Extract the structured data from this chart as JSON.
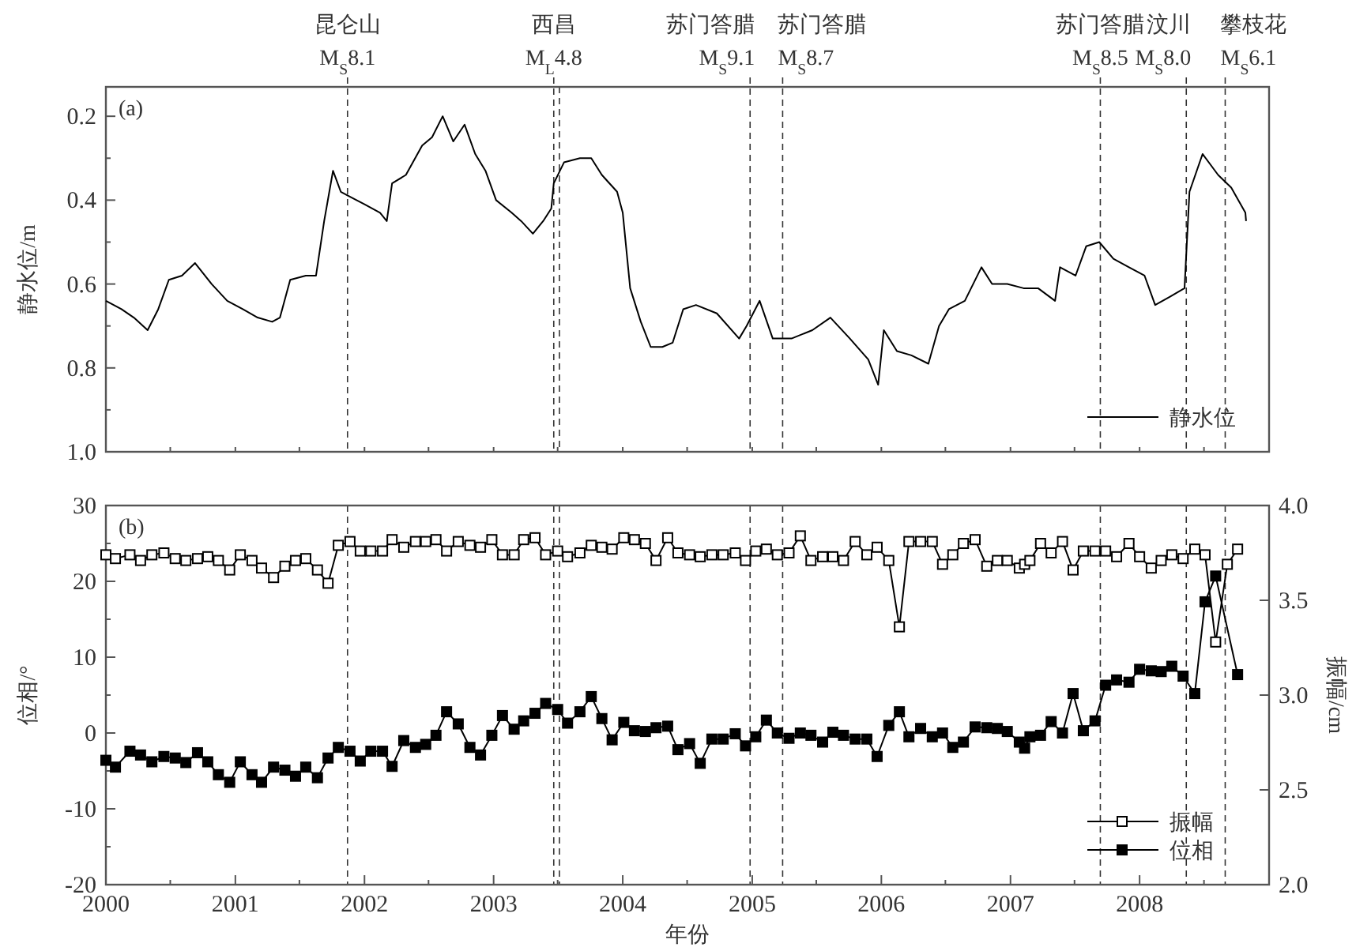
{
  "chart_data": [
    {
      "type": "line",
      "ylabel": "静水位/m",
      "annotations": [
        "(a)"
      ],
      "legend": "bottom right",
      "tick_labels": "y",
      "xlim": [
        "2000",
        "2009"
      ],
      "xticks": [
        {
          "value": "2000",
          "label": null
        },
        {
          "value": "2000-07",
          "label": null
        },
        {
          "value": "2001",
          "label": null
        },
        {
          "value": "2001-07",
          "label": null
        },
        {
          "value": "2002",
          "label": null
        },
        {
          "value": "2002-07",
          "label": null
        },
        {
          "value": "2003",
          "label": null
        },
        {
          "value": "2003-07",
          "label": null
        },
        {
          "value": "2004",
          "label": null
        },
        {
          "value": "2004-07",
          "label": null
        },
        {
          "value": "2005",
          "label": null
        },
        {
          "value": "2005-07",
          "label": null
        },
        {
          "value": "2006",
          "label": null
        },
        {
          "value": "2006-07",
          "label": null
        },
        {
          "value": "2007",
          "label": null
        },
        {
          "value": "2007-07",
          "label": null
        },
        {
          "value": "2008",
          "label": null
        },
        {
          "value": "2008-07",
          "label": null
        }
      ],
      "ylim": [
        1.0,
        0.13
      ],
      "yticks": [
        0.2,
        {
          "value": 0.3,
          "label": null
        },
        0.4,
        {
          "value": 0.5,
          "label": null
        },
        0.6,
        {
          "value": 0.7,
          "label": null
        },
        0.8,
        {
          "value": 0.9,
          "label": null
        },
        {
          "value": 1.0,
          "label": "1.0"
        }
      ],
      "ref_lines": [
        {
          "axis": "x",
          "value": "2001-11-14",
          "label": "昆仑山\nM$_{S}$8.1",
          "line_style": "dashed"
        },
        {
          "axis": "x",
          "value": "2003-06-20",
          "label": "西昌\nM$_{L}$4.8",
          "line_style": "dashed"
        },
        {
          "axis": "x",
          "value": "2003-07-06",
          "label": null,
          "line_style": "dashed"
        },
        {
          "axis": "x",
          "value": "2004-12-26",
          "label": "苏门答腊\nM$_{S}$9.1",
          "line_style": "dashed"
        },
        {
          "axis": "x",
          "value": "2005-03-28",
          "label": "苏门答腊\nM$_{S}$8.7",
          "line_style": "dashed"
        },
        {
          "axis": "x",
          "value": "2007-09-12",
          "label": "苏门答腊\nM$_{S}$8.5",
          "line_style": "dashed"
        },
        {
          "axis": "x",
          "value": "2008-05-12",
          "label": "汶川\nM$_{S}$8.0",
          "line_style": "dashed"
        },
        {
          "axis": "x",
          "value": "2008-08-30",
          "label": "攀枝花\nM$_{S}$6.1",
          "line_style": "dashed"
        }
      ],
      "series": [
        {
          "name": "静水位",
          "color": "#000000",
          "x": [
            "2000-01-01",
            "2000-02-14",
            "2000-03-20",
            "2000-04-28",
            "2000-05-28",
            "2000-06-27",
            "2000-08-03",
            "2000-09-09",
            "2000-10-26",
            "2000-12-09",
            "2001-01-22",
            "2001-03-05",
            "2001-04-15",
            "2001-05-07",
            "2001-06-05",
            "2001-07-19",
            "2001-08-17",
            "2001-09-09",
            "2001-10-04",
            "2001-10-26",
            "2001-11-17",
            "2002-01-01",
            "2002-02-14",
            "2002-03-05",
            "2002-03-20",
            "2002-04-28",
            "2002-06-13",
            "2002-07-11",
            "2002-08-10",
            "2002-09-09",
            "2002-10-11",
            "2002-11-10",
            "2002-12-09",
            "2003-01-08",
            "2003-02-21",
            "2003-03-20",
            "2003-04-22",
            "2003-05-21",
            "2003-06-13",
            "2003-06-20",
            "2003-07-19",
            "2003-09-02",
            "2003-10-04",
            "2003-11-03",
            "2003-12-16",
            "2004-01-01",
            "2004-01-22",
            "2004-02-21",
            "2004-03-20",
            "2004-04-22",
            "2004-05-21",
            "2004-06-20",
            "2004-07-26",
            "2004-09-23",
            "2004-11-25",
            "2004-12-16",
            "2005-01-22",
            "2005-02-28",
            "2005-04-22",
            "2005-06-20",
            "2005-08-10",
            "2005-10-04",
            "2005-11-25",
            "2005-12-23",
            "2006-01-08",
            "2006-02-14",
            "2006-03-27",
            "2006-05-14",
            "2006-06-13",
            "2006-07-11",
            "2006-08-25",
            "2006-10-11",
            "2006-11-10",
            "2006-12-23",
            "2007-02-07",
            "2007-03-20",
            "2007-05-07",
            "2007-05-21",
            "2007-07-04",
            "2007-08-03",
            "2007-09-09",
            "2007-10-19",
            "2007-12-02",
            "2008-01-15",
            "2008-02-14",
            "2008-03-27",
            "2008-05-07",
            "2008-05-21",
            "2008-06-27",
            "2008-08-10",
            "2008-09-16",
            "2008-10-26",
            "2008-10-28"
          ],
          "values": [
            0.64,
            0.66,
            0.68,
            0.71,
            0.66,
            0.59,
            0.58,
            0.55,
            0.6,
            0.64,
            0.66,
            0.68,
            0.69,
            0.68,
            0.59,
            0.58,
            0.58,
            0.45,
            0.33,
            0.38,
            0.39,
            0.41,
            0.43,
            0.45,
            0.36,
            0.34,
            0.27,
            0.25,
            0.2,
            0.26,
            0.22,
            0.29,
            0.33,
            0.4,
            0.43,
            0.45,
            0.48,
            0.45,
            0.42,
            0.36,
            0.31,
            0.3,
            0.3,
            0.34,
            0.38,
            0.43,
            0.61,
            0.69,
            0.75,
            0.75,
            0.74,
            0.66,
            0.65,
            0.67,
            0.73,
            0.7,
            0.64,
            0.73,
            0.73,
            0.71,
            0.68,
            0.73,
            0.78,
            0.84,
            0.71,
            0.76,
            0.77,
            0.79,
            0.7,
            0.66,
            0.64,
            0.56,
            0.6,
            0.6,
            0.61,
            0.61,
            0.64,
            0.56,
            0.58,
            0.51,
            0.5,
            0.54,
            0.56,
            0.58,
            0.65,
            0.63,
            0.61,
            0.38,
            0.29,
            0.34,
            0.37,
            0.43,
            0.45
          ]
        }
      ]
    },
    {
      "type": "line",
      "xlabel": "年份",
      "ylabel": "位相/°",
      "y2label": "振幅/cm",
      "annotations": [
        "(b)"
      ],
      "legend": "bottom right",
      "xlim": [
        "2000",
        "2009"
      ],
      "xticks": [
        {
          "value": "2000",
          "label": "2000"
        },
        {
          "value": "2000-07",
          "label": null
        },
        {
          "value": "2001",
          "label": "2001"
        },
        {
          "value": "2001-07",
          "label": null
        },
        {
          "value": "2002",
          "label": "2002"
        },
        {
          "value": "2002-07",
          "label": null
        },
        {
          "value": "2003",
          "label": "2003"
        },
        {
          "value": "2003-07",
          "label": null
        },
        {
          "value": "2004",
          "label": "2004"
        },
        {
          "value": "2004-07",
          "label": null
        },
        {
          "value": "2005",
          "label": "2005"
        },
        {
          "value": "2005-07",
          "label": null
        },
        {
          "value": "2006",
          "label": "2006"
        },
        {
          "value": "2006-07",
          "label": null
        },
        {
          "value": "2007",
          "label": "2007"
        },
        {
          "value": "2007-07",
          "label": null
        },
        {
          "value": "2008",
          "label": "2008"
        },
        {
          "value": "2008-07",
          "label": null
        }
      ],
      "ylim": [
        -20,
        30
      ],
      "yticks": [
        -20,
        {
          "value": -15,
          "label": null
        },
        -10,
        {
          "value": -5,
          "label": null
        },
        0,
        {
          "value": 5,
          "label": null
        },
        10,
        {
          "value": 15,
          "label": null
        },
        20,
        {
          "value": 25,
          "label": null
        },
        30
      ],
      "y2lim": [
        2.0,
        4.0
      ],
      "y2ticks": [
        {
          "value": 2.0,
          "label": "2.0"
        },
        2.5,
        {
          "value": 3.0,
          "label": "3.0"
        },
        3.5,
        {
          "value": 4.0,
          "label": "4.0"
        }
      ],
      "ref_lines": [
        {
          "axis": "x",
          "value": "2001-11-14",
          "label": null,
          "line_style": "dashed"
        },
        {
          "axis": "x",
          "value": "2003-06-20",
          "label": null,
          "line_style": "dashed"
        },
        {
          "axis": "x",
          "value": "2003-07-06",
          "label": null,
          "line_style": "dashed"
        },
        {
          "axis": "x",
          "value": "2004-12-26",
          "label": null,
          "line_style": "dashed"
        },
        {
          "axis": "x",
          "value": "2005-03-28",
          "label": null,
          "line_style": "dashed"
        },
        {
          "axis": "x",
          "value": "2007-09-12",
          "label": null,
          "line_style": "dashed"
        },
        {
          "axis": "x",
          "value": "2008-05-12",
          "label": null,
          "line_style": "dashed"
        },
        {
          "axis": "x",
          "value": "2008-08-30",
          "label": null,
          "line_style": "dashed"
        }
      ],
      "series": [
        {
          "name": "振幅",
          "color": "#000000",
          "axis": "y2",
          "marker": "square",
          "x": [
            "2000-01-01",
            "2000-01-28",
            "2000-03-09",
            "2000-04-08",
            "2000-05-10",
            "2000-06-13",
            "2000-07-15",
            "2000-08-14",
            "2000-09-16",
            "2000-10-15",
            "2000-11-14",
            "2000-12-16",
            "2001-01-15",
            "2001-02-17",
            "2001-03-16",
            "2001-04-19",
            "2001-05-21",
            "2001-06-20",
            "2001-07-19",
            "2001-08-21",
            "2001-09-20",
            "2001-10-19",
            "2001-11-21",
            "2001-12-20",
            "2002-01-19",
            "2002-02-21",
            "2002-03-20",
            "2002-04-22",
            "2002-05-25",
            "2002-06-23",
            "2002-07-22",
            "2002-08-21",
            "2002-09-23",
            "2002-10-26",
            "2002-11-25",
            "2002-12-27",
            "2003-01-26",
            "2003-02-28",
            "2003-03-27",
            "2003-04-28",
            "2003-05-28",
            "2003-07-01",
            "2003-07-29",
            "2003-09-02",
            "2003-10-04",
            "2003-11-03",
            "2003-12-02",
            "2004-01-04",
            "2004-02-03",
            "2004-03-05",
            "2004-04-04",
            "2004-05-07",
            "2004-06-05",
            "2004-07-08",
            "2004-08-07",
            "2004-09-09",
            "2004-10-11",
            "2004-11-14",
            "2004-12-13",
            "2005-01-11",
            "2005-02-10",
            "2005-03-13",
            "2005-04-15",
            "2005-05-17",
            "2005-06-16",
            "2005-07-19",
            "2005-08-17",
            "2005-09-16",
            "2005-10-19",
            "2005-11-21",
            "2005-12-20",
            "2006-01-22",
            "2006-02-21",
            "2006-03-20",
            "2006-04-22",
            "2006-05-25",
            "2006-06-23",
            "2006-07-22",
            "2006-08-21",
            "2006-09-23",
            "2006-10-26",
            "2006-11-25",
            "2006-12-23",
            "2007-01-26",
            "2007-02-10",
            "2007-02-25",
            "2007-03-27",
            "2007-04-26",
            "2007-05-28",
            "2007-06-27",
            "2007-07-26",
            "2007-08-28",
            "2007-09-27",
            "2007-10-28",
            "2007-12-02",
            "2008-01-01",
            "2008-02-03",
            "2008-03-02",
            "2008-04-01",
            "2008-05-03",
            "2008-06-05",
            "2008-07-04",
            "2008-08-03",
            "2008-09-05",
            "2008-10-04"
          ],
          "values": [
            3.74,
            3.72,
            3.74,
            3.71,
            3.74,
            3.75,
            3.72,
            3.71,
            3.72,
            3.73,
            3.71,
            3.66,
            3.74,
            3.71,
            3.67,
            3.62,
            3.68,
            3.71,
            3.72,
            3.66,
            3.59,
            3.79,
            3.81,
            3.76,
            3.76,
            3.76,
            3.82,
            3.78,
            3.81,
            3.81,
            3.82,
            3.76,
            3.81,
            3.79,
            3.78,
            3.82,
            3.74,
            3.74,
            3.82,
            3.83,
            3.74,
            3.76,
            3.73,
            3.75,
            3.79,
            3.78,
            3.77,
            3.83,
            3.82,
            3.8,
            3.71,
            3.83,
            3.75,
            3.74,
            3.73,
            3.74,
            3.74,
            3.75,
            3.71,
            3.76,
            3.77,
            3.74,
            3.75,
            3.84,
            3.71,
            3.73,
            3.73,
            3.71,
            3.81,
            3.74,
            3.78,
            3.71,
            3.36,
            3.81,
            3.81,
            3.81,
            3.69,
            3.74,
            3.8,
            3.82,
            3.68,
            3.71,
            3.71,
            3.67,
            3.69,
            3.71,
            3.8,
            3.75,
            3.81,
            3.66,
            3.76,
            3.76,
            3.76,
            3.73,
            3.8,
            3.73,
            3.67,
            3.71,
            3.74,
            3.72,
            3.77,
            3.74,
            3.28,
            3.69,
            3.77
          ]
        },
        {
          "name": "位相",
          "color": "#000000",
          "marker": "square",
          "x": [
            "2000-01-01",
            "2000-01-28",
            "2000-03-09",
            "2000-04-08",
            "2000-05-10",
            "2000-06-13",
            "2000-07-15",
            "2000-08-14",
            "2000-09-16",
            "2000-10-15",
            "2000-11-14",
            "2000-12-16",
            "2001-01-15",
            "2001-02-17",
            "2001-03-16",
            "2001-04-19",
            "2001-05-21",
            "2001-06-20",
            "2001-07-19",
            "2001-08-21",
            "2001-09-20",
            "2001-10-19",
            "2001-11-21",
            "2001-12-20",
            "2002-01-19",
            "2002-02-21",
            "2002-03-20",
            "2002-04-22",
            "2002-05-25",
            "2002-06-23",
            "2002-07-22",
            "2002-08-21",
            "2002-09-23",
            "2002-10-26",
            "2002-11-25",
            "2002-12-27",
            "2003-01-26",
            "2003-02-28",
            "2003-03-27",
            "2003-04-28",
            "2003-05-28",
            "2003-07-01",
            "2003-07-29",
            "2003-09-02",
            "2003-10-04",
            "2003-11-03",
            "2003-12-02",
            "2004-01-04",
            "2004-02-03",
            "2004-03-05",
            "2004-04-04",
            "2004-05-07",
            "2004-06-05",
            "2004-07-08",
            "2004-08-07",
            "2004-09-09",
            "2004-10-11",
            "2004-11-14",
            "2004-12-13",
            "2005-01-11",
            "2005-02-10",
            "2005-03-13",
            "2005-04-15",
            "2005-05-17",
            "2005-06-16",
            "2005-07-19",
            "2005-08-17",
            "2005-09-16",
            "2005-10-19",
            "2005-11-21",
            "2005-12-20",
            "2006-01-22",
            "2006-02-21",
            "2006-03-20",
            "2006-04-22",
            "2006-05-25",
            "2006-06-23",
            "2006-07-22",
            "2006-08-21",
            "2006-09-23",
            "2006-10-26",
            "2006-11-25",
            "2006-12-23",
            "2007-01-26",
            "2007-02-10",
            "2007-02-25",
            "2007-03-27",
            "2007-04-26",
            "2007-05-28",
            "2007-06-27",
            "2007-07-26",
            "2007-08-28",
            "2007-09-27",
            "2007-10-28",
            "2007-12-02",
            "2008-01-01",
            "2008-02-03",
            "2008-03-02",
            "2008-04-01",
            "2008-05-03",
            "2008-06-05",
            "2008-07-04",
            "2008-08-03",
            "2008-10-04"
          ],
          "values": [
            -3.6,
            -4.5,
            -2.4,
            -2.9,
            -3.8,
            -3.1,
            -3.3,
            -3.9,
            -2.6,
            -3.8,
            -5.5,
            -6.5,
            -3.8,
            -5.5,
            -6.5,
            -4.5,
            -4.9,
            -5.7,
            -4.5,
            -5.9,
            -3.3,
            -1.9,
            -2.4,
            -3.7,
            -2.4,
            -2.4,
            -4.4,
            -1.0,
            -1.9,
            -1.5,
            -0.3,
            2.8,
            1.2,
            -1.9,
            -2.9,
            -0.3,
            2.3,
            0.5,
            1.6,
            2.6,
            3.9,
            3.1,
            1.3,
            2.8,
            4.8,
            1.9,
            -0.9,
            1.4,
            0.3,
            0.2,
            0.7,
            0.9,
            -2.2,
            -1.4,
            -4.0,
            -0.8,
            -0.8,
            -0.1,
            -1.7,
            -0.5,
            1.7,
            0.0,
            -0.7,
            0.0,
            -0.3,
            -1.2,
            0.1,
            -0.3,
            -0.8,
            -0.8,
            -3.1,
            1.0,
            2.8,
            -0.5,
            0.6,
            -0.5,
            0.0,
            -1.9,
            -1.2,
            0.8,
            0.7,
            0.6,
            0.2,
            -1.2,
            -2.0,
            -0.5,
            -0.3,
            1.5,
            0.0,
            5.2,
            0.3,
            1.6,
            6.3,
            7.0,
            6.7,
            8.4,
            8.2,
            8.1,
            8.8,
            7.5,
            5.2,
            17.3,
            20.7,
            7.7
          ]
        }
      ]
    }
  ]
}
